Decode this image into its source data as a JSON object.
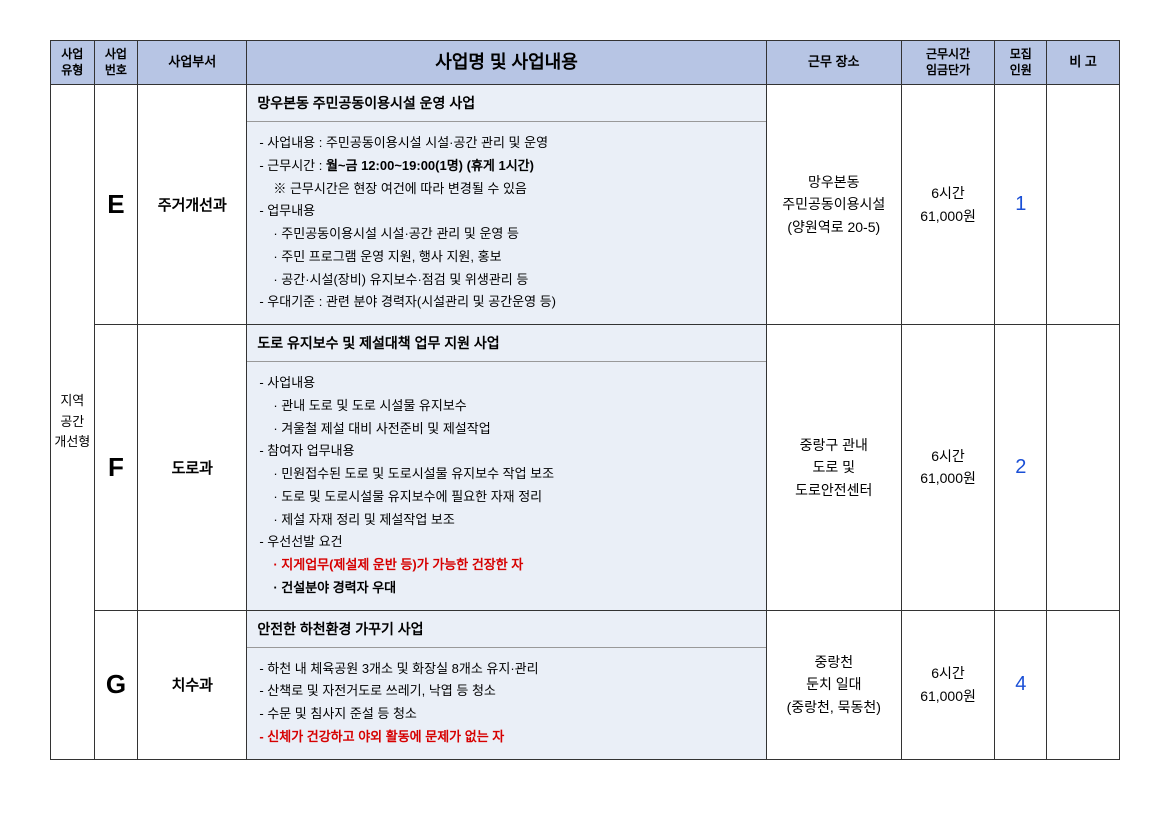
{
  "colors": {
    "header_bg": "#b7c5e4",
    "desc_bg": "#eaeff7",
    "border": "#333333",
    "recruit_text": "#1a4fd6",
    "warning_text": "#d60000"
  },
  "headers": {
    "type": "사업\n유형",
    "num": "사업\n번호",
    "dept": "사업부서",
    "desc": "사업명 및 사업내용",
    "loc": "근무 장소",
    "hours": "근무시간\n임금단가",
    "recruit": "모집\n인원",
    "note": "비  고"
  },
  "category": "지역\n공간\n개선형",
  "rows": [
    {
      "num": "E",
      "dept": "주거개선과",
      "title": "망우본동 주민공동이용시설 운영 사업",
      "lines": [
        {
          "text": "- 사업내용 : 주민공동이용시설 시설·공간 관리 및 운영"
        },
        {
          "text_prefix": "- 근무시간 : ",
          "bold": "월~금 12:00~19:00(1명) (휴게 1시간)"
        },
        {
          "text": " ※ 근무시간은 현장 여건에 따라 변경될 수 있음",
          "indent": true
        },
        {
          "text": "- 업무내용"
        },
        {
          "text": "· 주민공동이용시설 시설·공간 관리 및 운영 등",
          "indent": true
        },
        {
          "text": "· 주민 프로그램 운영 지원, 행사 지원, 홍보",
          "indent": true
        },
        {
          "text": "· 공간·시설(장비) 유지보수·점검 및 위생관리 등",
          "indent": true
        },
        {
          "text": "- 우대기준 : 관련 분야 경력자(시설관리 및 공간운영 등)"
        }
      ],
      "loc": "망우본동\n주민공동이용시설\n(양원역로 20-5)",
      "hours": "6시간\n61,000원",
      "recruit": "1",
      "note": ""
    },
    {
      "num": "F",
      "dept": "도로과",
      "title": "도로 유지보수 및 제설대책 업무 지원 사업",
      "lines": [
        {
          "text": "- 사업내용"
        },
        {
          "text": "· 관내 도로 및 도로 시설물 유지보수",
          "indent": true
        },
        {
          "text": "· 겨울철 제설 대비 사전준비 및 제설작업",
          "indent": true
        },
        {
          "text": "- 참여자 업무내용"
        },
        {
          "text": "· 민원접수된 도로 및 도로시설물 유지보수 작업 보조",
          "indent": true
        },
        {
          "text": "· 도로 및 도로시설물 유지보수에 필요한 자재 정리",
          "indent": true
        },
        {
          "text": "· 제설 자재 정리 및 제설작업 보조",
          "indent": true
        },
        {
          "text": "- 우선선발 요건"
        },
        {
          "text": "· 지게업무(제설제 운반 등)가 가능한 건장한 자",
          "indent": true,
          "red": true,
          "bold_all": true
        },
        {
          "text": "· 건설분야 경력자 우대",
          "indent": true,
          "bold_all": true
        }
      ],
      "loc": "중랑구 관내\n도로 및\n도로안전센터",
      "hours": "6시간\n61,000원",
      "recruit": "2",
      "note": ""
    },
    {
      "num": "G",
      "dept": "치수과",
      "title": "안전한 하천환경 가꾸기 사업",
      "lines": [
        {
          "text": "- 하천 내 체육공원 3개소 및 화장실 8개소 유지·관리"
        },
        {
          "text": "- 산책로 및 자전거도로 쓰레기, 낙엽 등 청소"
        },
        {
          "text": "- 수문 및 침사지 준설 등 청소"
        },
        {
          "text": "- 신체가 건강하고 야외 활동에 문제가 없는 자",
          "red": true,
          "bold_all": true
        }
      ],
      "loc": "중랑천\n둔치 일대\n(중랑천, 묵동천)",
      "hours": "6시간\n61,000원",
      "recruit": "4",
      "note": ""
    }
  ]
}
